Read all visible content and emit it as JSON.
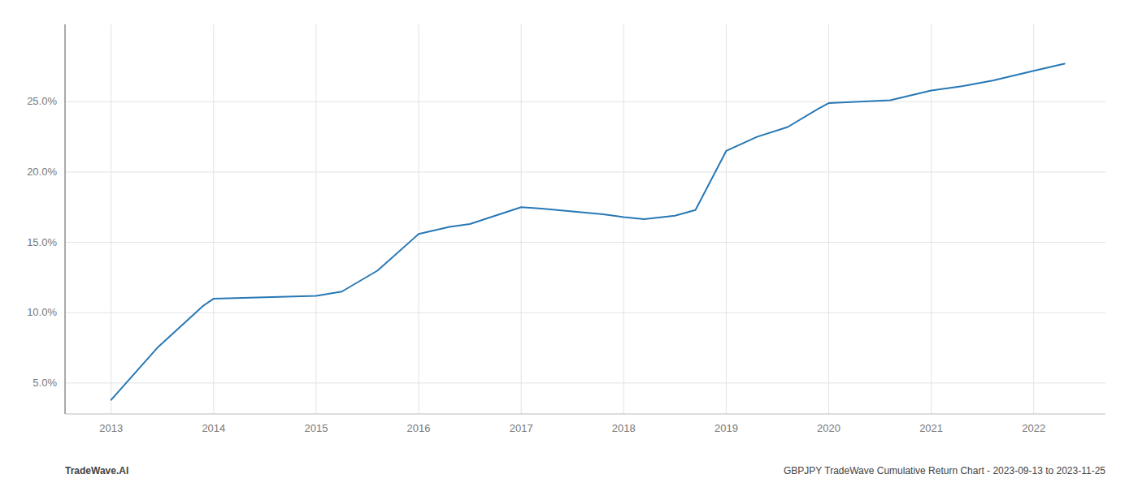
{
  "chart_data": {
    "type": "line",
    "x": [
      2013.0,
      2013.45,
      2013.9,
      2014.0,
      2014.5,
      2015.0,
      2015.25,
      2015.6,
      2016.0,
      2016.3,
      2016.5,
      2017.0,
      2017.2,
      2017.5,
      2017.8,
      2018.0,
      2018.2,
      2018.5,
      2018.7,
      2019.0,
      2019.3,
      2019.6,
      2019.9,
      2020.0,
      2020.3,
      2020.6,
      2021.0,
      2021.3,
      2021.6,
      2022.0,
      2022.3
    ],
    "values": [
      3.8,
      7.5,
      10.5,
      11.0,
      11.1,
      11.2,
      11.5,
      13.0,
      15.6,
      16.1,
      16.3,
      17.5,
      17.4,
      17.2,
      17.0,
      16.8,
      16.65,
      16.9,
      17.3,
      21.5,
      22.5,
      23.2,
      24.5,
      24.9,
      25.0,
      25.1,
      25.8,
      26.1,
      26.5,
      27.2,
      27.7
    ],
    "color": "#2878b5",
    "xlim": [
      2012.55,
      2022.7
    ],
    "ylim": [
      2.8,
      30.5
    ],
    "xticks": [
      2013,
      2014,
      2015,
      2016,
      2017,
      2018,
      2019,
      2020,
      2021,
      2022
    ],
    "yticks": [
      {
        "value": 5.0,
        "label": "5.0%"
      },
      {
        "value": 10.0,
        "label": "10.0%"
      },
      {
        "value": 15.0,
        "label": "15.0%"
      },
      {
        "value": 20.0,
        "label": "20.0%"
      },
      {
        "value": 25.0,
        "label": "25.0%"
      }
    ],
    "grid": true,
    "annotations": [
      "TradeWave.AI",
      "GBPJPY TradeWave Cumulative Return Chart - 2023-09-13 to 2023-11-25"
    ]
  }
}
